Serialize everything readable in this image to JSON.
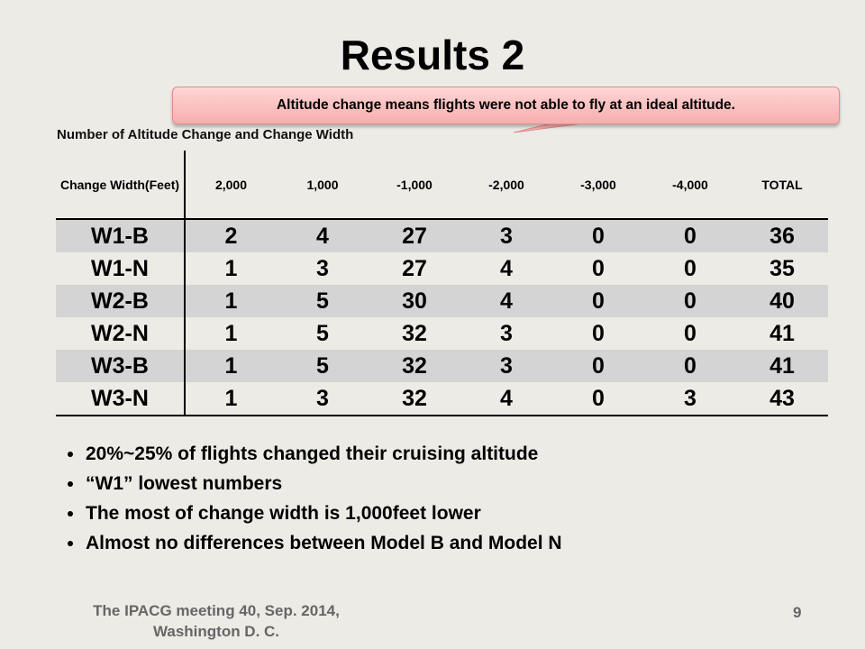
{
  "title": "Results 2",
  "callout": "Altitude change means flights were not able to fly at an ideal altitude.",
  "subtitle": "Number of Altitude Change and Change Width",
  "table": {
    "headers": [
      "Change Width(Feet)",
      "2,000",
      "1,000",
      "-1,000",
      "-2,000",
      "-3,000",
      "-4,000",
      "TOTAL"
    ],
    "rows": [
      [
        "W1-B",
        "2",
        "4",
        "27",
        "3",
        "0",
        "0",
        "36"
      ],
      [
        "W1-N",
        "1",
        "3",
        "27",
        "4",
        "0",
        "0",
        "35"
      ],
      [
        "W2-B",
        "1",
        "5",
        "30",
        "4",
        "0",
        "0",
        "40"
      ],
      [
        "W2-N",
        "1",
        "5",
        "32",
        "3",
        "0",
        "0",
        "41"
      ],
      [
        "W3-B",
        "1",
        "5",
        "32",
        "3",
        "0",
        "0",
        "41"
      ],
      [
        "W3-N",
        "1",
        "3",
        "32",
        "4",
        "0",
        "3",
        "43"
      ]
    ]
  },
  "bullets": [
    "20%~25% of flights changed their cruising altitude",
    "“W1” lowest numbers",
    "The most of change width is 1,000feet lower",
    "Almost no differences between Model B and Model N"
  ],
  "footer": "The IPACG meeting 40, Sep. 2014, Washington D. C.",
  "page_number": "9",
  "colors": {
    "background": "#ecebe6",
    "callout_fill": "#f7aeae",
    "shaded_row": "#d4d4d4",
    "footer_text": "#666666"
  }
}
